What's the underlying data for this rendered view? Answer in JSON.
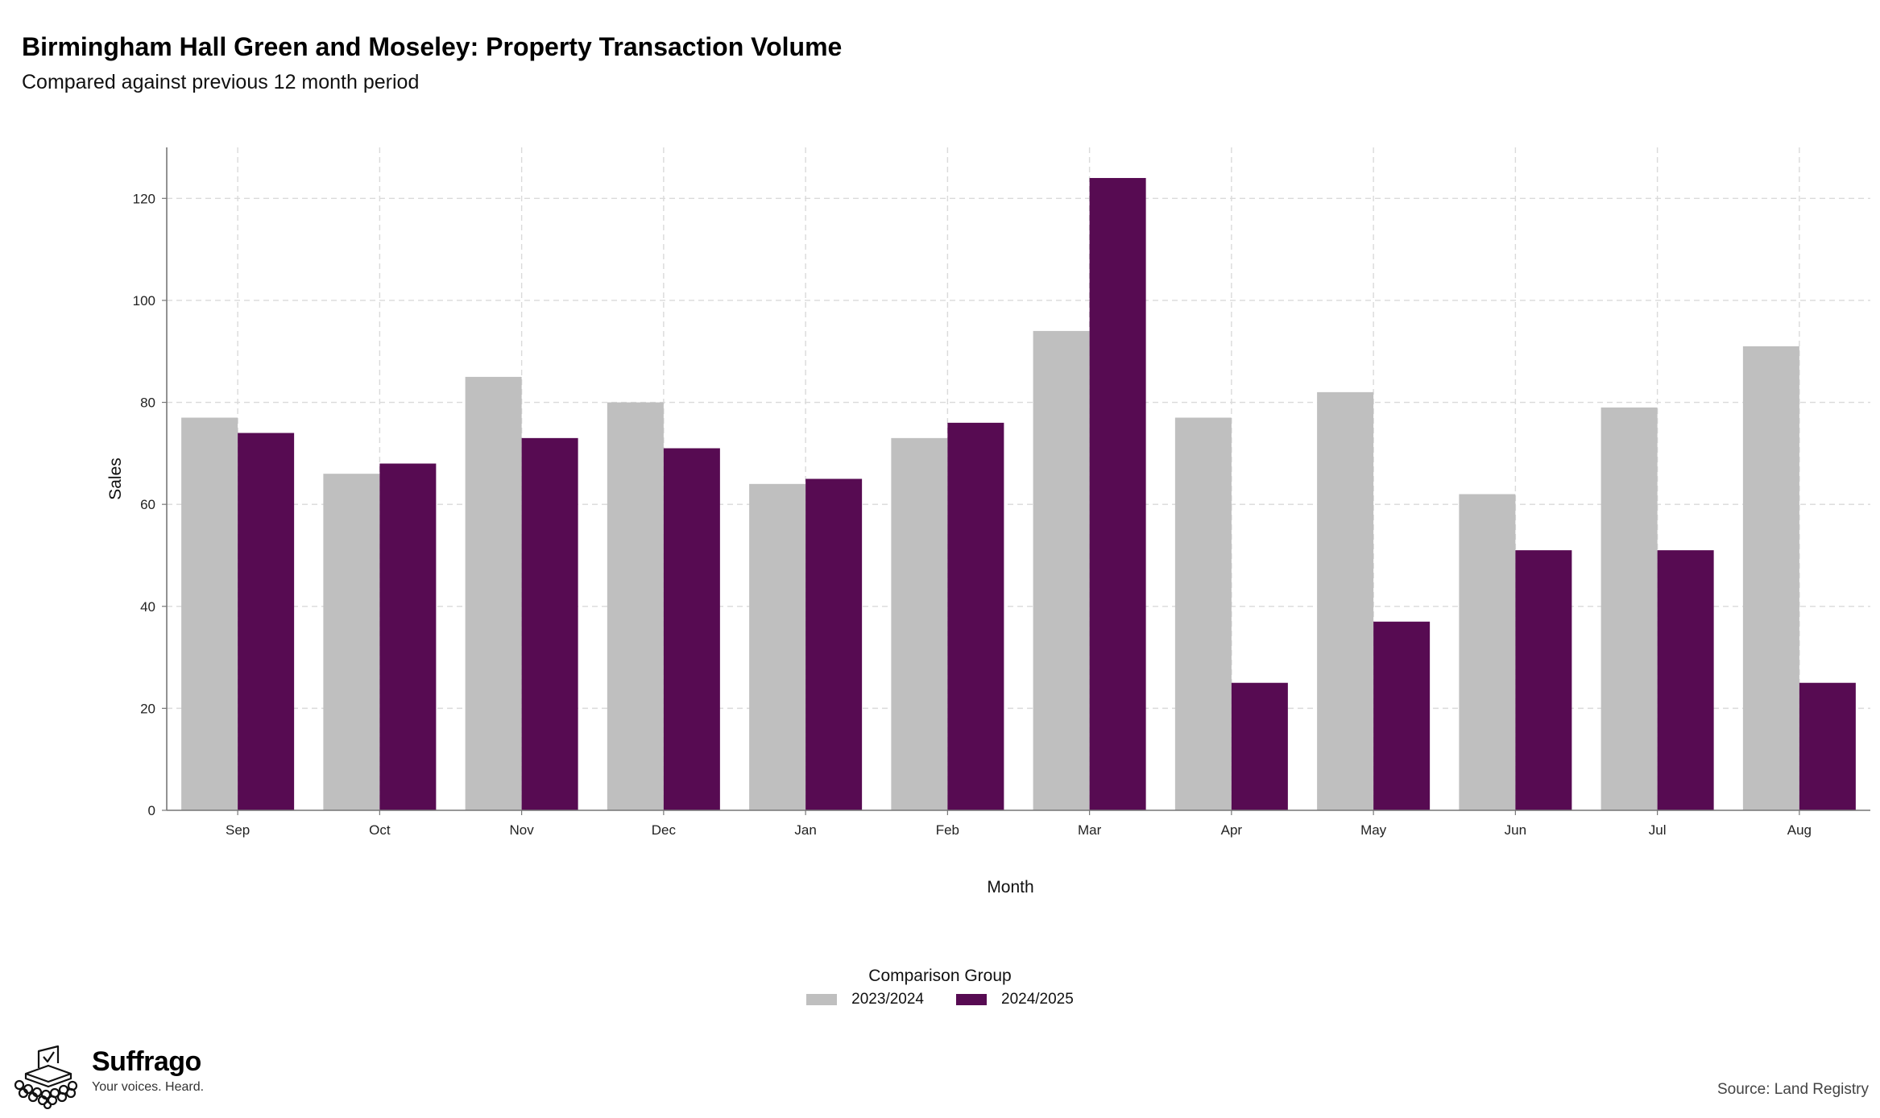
{
  "header": {
    "title": "Birmingham Hall Green and Moseley: Property Transaction Volume",
    "subtitle": "Compared against previous 12 month period"
  },
  "chart_data": {
    "type": "bar",
    "categories": [
      "Sep",
      "Oct",
      "Nov",
      "Dec",
      "Jan",
      "Feb",
      "Mar",
      "Apr",
      "May",
      "Jun",
      "Jul",
      "Aug"
    ],
    "series": [
      {
        "name": "2023/2024",
        "color": "#bfbfbf",
        "values": [
          77,
          66,
          85,
          80,
          64,
          73,
          94,
          77,
          82,
          62,
          79,
          91
        ]
      },
      {
        "name": "2024/2025",
        "color": "#570b52",
        "values": [
          74,
          68,
          73,
          71,
          65,
          76,
          124,
          25,
          37,
          51,
          51,
          25
        ]
      }
    ],
    "xlabel": "Month",
    "ylabel": "Sales",
    "ylim": [
      0,
      130
    ],
    "yticks": [
      0,
      20,
      40,
      60,
      80,
      100,
      120
    ],
    "grid": true,
    "legend_title": "Comparison Group",
    "legend_position": "bottom"
  },
  "footer": {
    "brand": "Suffrago",
    "tagline": "Your voices. Heard.",
    "source": "Source: Land Registry"
  }
}
